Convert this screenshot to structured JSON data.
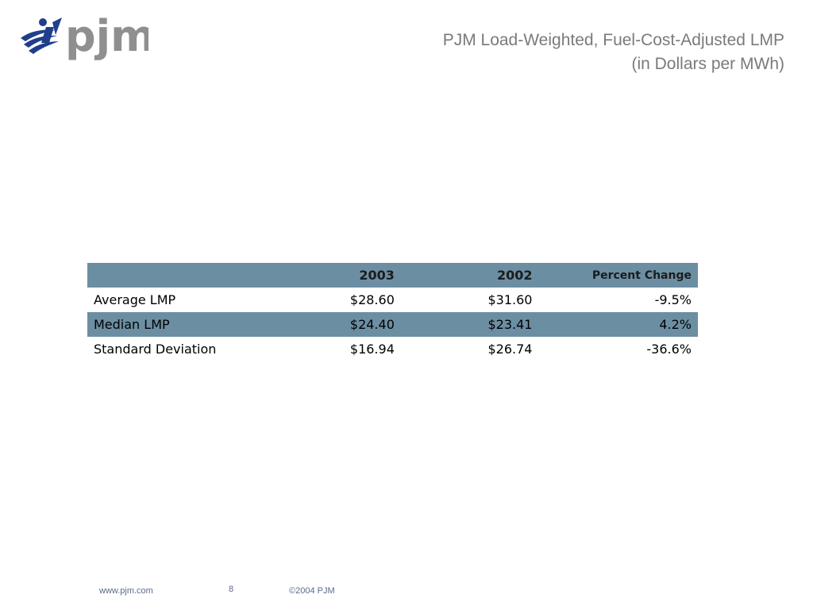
{
  "logo": {
    "text": "pjm",
    "icon": "pjm-swoosh-logo-icon",
    "colors": {
      "mark": "#1f3f8a",
      "text": "#8f8f8f"
    }
  },
  "title": {
    "line1": "PJM Load-Weighted, Fuel-Cost-Adjusted LMP",
    "line2": "(in Dollars per MWh)"
  },
  "table": {
    "header": {
      "label": "",
      "col_2003": "2003",
      "col_2002": "2002",
      "col_pct": "Percent Change"
    },
    "rows": [
      {
        "label": "Average LMP",
        "col_2003": "$28.60",
        "col_2002": "$31.60",
        "col_pct": "-9.5%"
      },
      {
        "label": "Median LMP",
        "col_2003": "$24.40",
        "col_2002": "$23.41",
        "col_pct": "4.2%"
      },
      {
        "label": "Standard Deviation",
        "col_2003": "$16.94",
        "col_2002": "$26.74",
        "col_pct": "-36.6%"
      }
    ],
    "colors": {
      "shade": "#6b8ea3"
    }
  },
  "footer": {
    "url": "www.pjm.com",
    "page": "8",
    "copyright": "©2004 PJM"
  }
}
